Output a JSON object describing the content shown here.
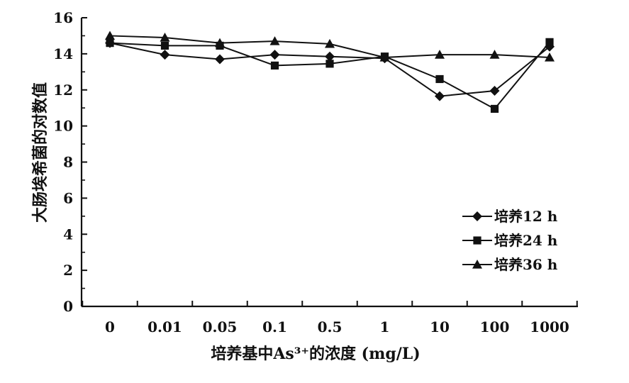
{
  "chart_data": {
    "type": "line",
    "title": "",
    "xlabel": "培养基中As³⁺的浓度 (mg/L)",
    "ylabel": "大肠埃希菌的对数值",
    "categories": [
      "0",
      "0.01",
      "0.05",
      "0.1",
      "0.5",
      "1",
      "10",
      "100",
      "1000"
    ],
    "y_ticks": [
      "0",
      "2",
      "4",
      "6",
      "8",
      "10",
      "12",
      "14",
      "16"
    ],
    "ylim": [
      0,
      16
    ],
    "grid": false,
    "legend_position": "lower-right",
    "series": [
      {
        "name": "培养12 h",
        "marker": "diamond",
        "color": "#111111",
        "values": [
          14.6,
          13.95,
          13.7,
          13.95,
          13.85,
          13.75,
          11.65,
          11.95,
          14.4
        ]
      },
      {
        "name": "培养24 h",
        "marker": "square",
        "color": "#111111",
        "values": [
          14.6,
          14.45,
          14.45,
          13.35,
          13.45,
          13.85,
          12.6,
          10.95,
          14.65
        ]
      },
      {
        "name": "培养36 h",
        "marker": "triangle",
        "color": "#111111",
        "values": [
          15.0,
          14.9,
          14.6,
          14.7,
          14.55,
          13.8,
          13.95,
          13.95,
          13.8
        ]
      }
    ]
  }
}
